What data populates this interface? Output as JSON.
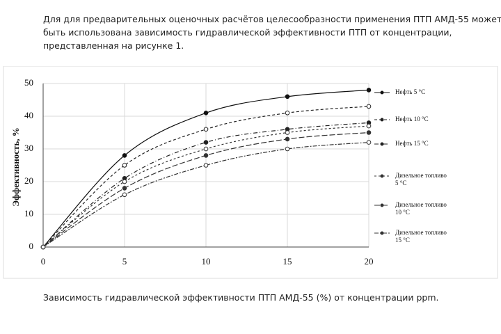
{
  "paragraph": "Для для предварительных оценочных расчётов целесообразности применения ПТП АМД-55 может быть использована зависимость гидравлической эффективности ПТП от концентрации, представленная на рисунке 1.",
  "caption": "Зависимость гидравлической эффективности ПТП АМД-55 (%) от концентрации ppm.",
  "chart_data": {
    "type": "line",
    "y_label": "Эффективность, %",
    "x": [
      0,
      5,
      10,
      15,
      20
    ],
    "xlim": [
      0,
      20
    ],
    "xticks": [
      0,
      5,
      10,
      15,
      20
    ],
    "ylim": [
      0,
      50
    ],
    "yticks": [
      0,
      10,
      20,
      30,
      40,
      50
    ],
    "grid": true,
    "series": [
      {
        "name": "Нефть 5 °C",
        "color": "#111111",
        "dash": "none",
        "values": [
          0,
          28,
          41,
          46,
          48
        ]
      },
      {
        "name": "Нефть 10 °C",
        "color": "#222222",
        "dash": "4 3",
        "values": [
          0,
          25,
          36,
          41,
          43
        ]
      },
      {
        "name": "Нефть 15 °C",
        "color": "#222222",
        "dash": "6 3 1 3",
        "values": [
          0,
          21,
          32,
          36,
          38
        ]
      },
      {
        "name": "Дизельное топливо 5 °C",
        "color": "#333333",
        "dash": "3 3",
        "values": [
          0,
          20,
          30,
          35,
          37
        ]
      },
      {
        "name": "Дизельное топливо 10 °C",
        "color": "#333333",
        "dash": "8 3",
        "values": [
          0,
          18,
          28,
          33,
          35
        ]
      },
      {
        "name": "Дизельное топливо 15 °C",
        "color": "#333333",
        "dash": "6 2 2 2",
        "values": [
          0,
          16,
          25,
          30,
          32
        ]
      }
    ]
  }
}
